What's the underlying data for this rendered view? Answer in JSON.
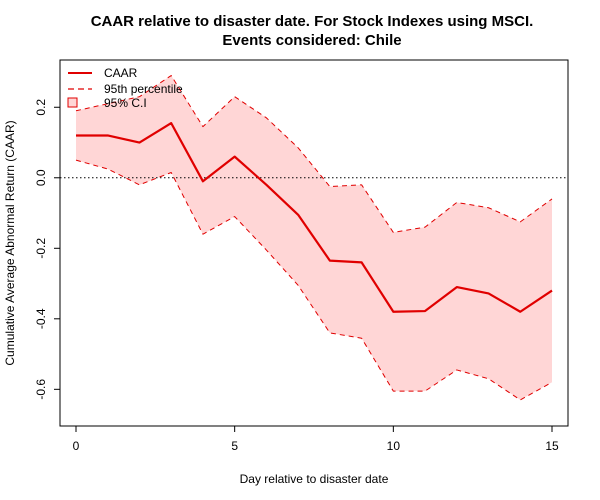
{
  "chart_data": {
    "type": "line",
    "title": "CAAR relative to disaster date. For Stock Indexes using MSCI.",
    "subtitle": "Events considered: Chile",
    "xlabel": "Day relative to disaster date",
    "ylabel": "Cumulative Average Abnormal Return (CAAR)",
    "xlim": [
      0,
      15
    ],
    "ylim": [
      -0.67,
      0.3
    ],
    "x_ticks": [
      0,
      5,
      10,
      15
    ],
    "y_ticks": [
      -0.6,
      -0.4,
      -0.2,
      0.0,
      0.2
    ],
    "x_tick_labels": [
      "0",
      "5",
      "10",
      "15"
    ],
    "y_tick_labels": [
      "-0.6",
      "-0.4",
      "-0.2",
      "0.0",
      "0.2"
    ],
    "reference_line": {
      "y": 0.0,
      "style": "dotted"
    },
    "x": [
      0,
      1,
      2,
      3,
      4,
      5,
      6,
      7,
      8,
      9,
      10,
      11,
      12,
      13,
      14,
      15
    ],
    "series": [
      {
        "name": "CAAR",
        "values": [
          0.12,
          0.12,
          0.1,
          0.155,
          -0.01,
          0.06,
          -0.02,
          -0.105,
          -0.235,
          -0.24,
          -0.38,
          -0.378,
          -0.31,
          -0.328,
          -0.38,
          -0.32
        ]
      },
      {
        "name": "95th percentile",
        "role": "upper",
        "values": [
          0.19,
          0.21,
          0.23,
          0.29,
          0.145,
          0.23,
          0.17,
          0.085,
          -0.025,
          -0.02,
          -0.155,
          -0.14,
          -0.07,
          -0.085,
          -0.125,
          -0.06
        ]
      },
      {
        "name": "95th percentile",
        "role": "lower",
        "values": [
          0.05,
          0.025,
          -0.02,
          0.015,
          -0.16,
          -0.11,
          -0.205,
          -0.305,
          -0.44,
          -0.455,
          -0.605,
          -0.605,
          -0.545,
          -0.57,
          -0.63,
          -0.58
        ]
      }
    ],
    "legend": {
      "position": "top-left",
      "entries": [
        "CAAR",
        "95th percentile",
        "95% C.I"
      ]
    },
    "colors": {
      "line": "#e00000",
      "band_fill": "#ffd6d6",
      "axis": "#000000"
    },
    "grid": false
  }
}
